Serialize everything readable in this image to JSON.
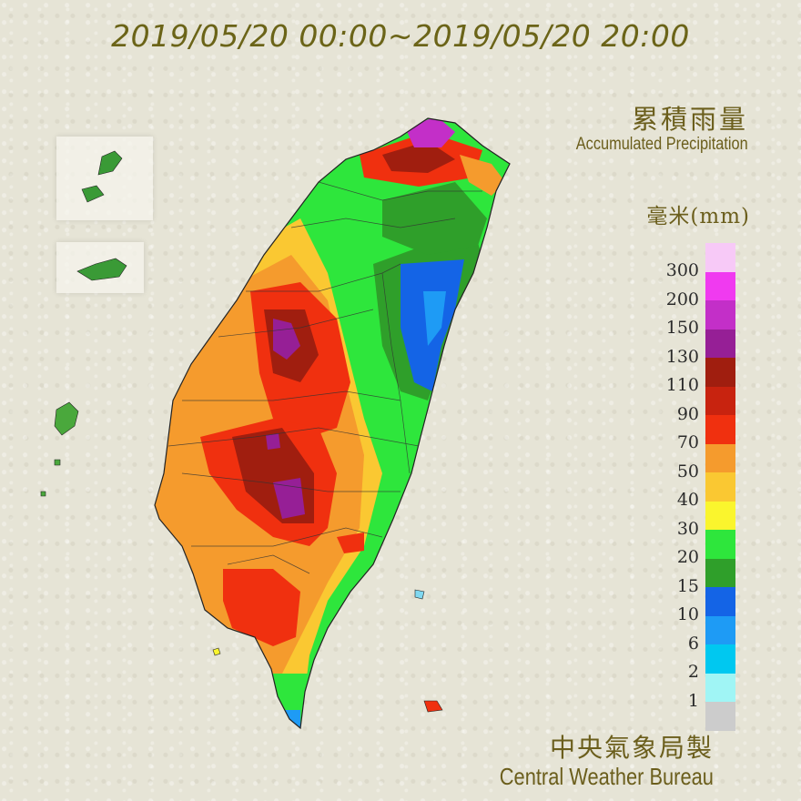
{
  "title": "2019/05/20 00:00~2019/05/20 20:00",
  "legend": {
    "title_zh": "累積雨量",
    "title_en": "Accumulated Precipitation",
    "unit": "毫米(mm)",
    "levels": [
      {
        "label": "300",
        "color": "#f7c9f7"
      },
      {
        "label": "200",
        "color": "#f03af0"
      },
      {
        "label": "150",
        "color": "#c32fc8"
      },
      {
        "label": "130",
        "color": "#961f96"
      },
      {
        "label": "110",
        "color": "#a01e0f"
      },
      {
        "label": "90",
        "color": "#c8230f"
      },
      {
        "label": "70",
        "color": "#f0300f"
      },
      {
        "label": "50",
        "color": "#f59b2d"
      },
      {
        "label": "40",
        "color": "#fac832"
      },
      {
        "label": "30",
        "color": "#faf52d"
      },
      {
        "label": "20",
        "color": "#2ee63c"
      },
      {
        "label": "15",
        "color": "#2f9f2a"
      },
      {
        "label": "10",
        "color": "#1464e6"
      },
      {
        "label": "6",
        "color": "#1e9bf5"
      },
      {
        "label": "2",
        "color": "#00c8f0"
      },
      {
        "label": "1",
        "color": "#a0f5f5"
      },
      {
        "label": "",
        "color": "#cccccc"
      }
    ]
  },
  "credit": {
    "zh": "中央氣象局製",
    "en": "Central Weather Bureau"
  }
}
